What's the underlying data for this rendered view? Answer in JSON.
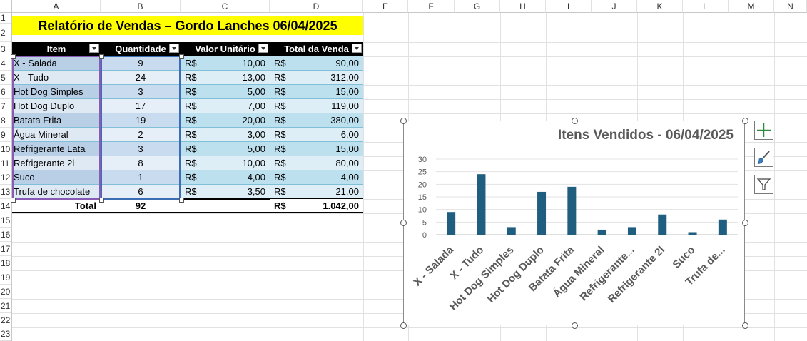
{
  "columns": [
    "A",
    "B",
    "C",
    "D",
    "E",
    "F",
    "G",
    "H",
    "I",
    "J",
    "K",
    "L",
    "M",
    "N"
  ],
  "rows": [
    "1",
    "2",
    "3",
    "4",
    "5",
    "6",
    "7",
    "8",
    "9",
    "10",
    "11",
    "12",
    "13",
    "14",
    "15",
    "16",
    "17",
    "18",
    "19",
    "20",
    "21",
    "22",
    "23"
  ],
  "report": {
    "title": "Relatório de Vendas – Gordo Lanches 06/04/2025",
    "headers": [
      "Item",
      "Quantidade",
      "Valor Unitário",
      "Total da Venda"
    ],
    "currency": "R$",
    "items": [
      {
        "item": "X - Salada",
        "qty": "9",
        "unit": "10,00",
        "total": "90,00"
      },
      {
        "item": "X - Tudo",
        "qty": "24",
        "unit": "13,00",
        "total": "312,00"
      },
      {
        "item": "Hot Dog Simples",
        "qty": "3",
        "unit": "5,00",
        "total": "15,00"
      },
      {
        "item": "Hot Dog Duplo",
        "qty": "17",
        "unit": "7,00",
        "total": "119,00"
      },
      {
        "item": "Batata Frita",
        "qty": "19",
        "unit": "20,00",
        "total": "380,00"
      },
      {
        "item": "Água Mineral",
        "qty": "2",
        "unit": "3,00",
        "total": "6,00"
      },
      {
        "item": "Refrigerante Lata",
        "qty": "3",
        "unit": "5,00",
        "total": "15,00"
      },
      {
        "item": "Refrigerante 2l",
        "qty": "8",
        "unit": "10,00",
        "total": "80,00"
      },
      {
        "item": "Suco",
        "qty": "1",
        "unit": "4,00",
        "total": "4,00"
      },
      {
        "item": "Trufa de chocolate",
        "qty": "6",
        "unit": "3,50",
        "total": "21,00"
      }
    ],
    "total_label": "Total",
    "total_qty": "92",
    "total_value": "1.042,00"
  },
  "colors": {
    "title_bg": "#ffff00",
    "header_bg": "#000000",
    "band_dark": "#bde0ef",
    "band_light": "#ddeef7",
    "bar": "#1f5e7e"
  },
  "chart_icons": [
    "add-chart-element-icon",
    "chart-styles-brush-icon",
    "chart-filter-icon"
  ],
  "chart_data": {
    "type": "bar",
    "title": "Itens Vendidos - 06/04/2025",
    "categories": [
      "X - Salada",
      "X - Tudo",
      "Hot Dog Simples",
      "Hot Dog Duplo",
      "Batata Frita",
      "Água Mineral",
      "Refrigerante...",
      "Refrigerante 2l",
      "Suco",
      "Trufa de..."
    ],
    "values": [
      9,
      24,
      3,
      17,
      19,
      2,
      3,
      8,
      1,
      6
    ],
    "yticks": [
      "0",
      "5",
      "10",
      "15",
      "20",
      "25",
      "30"
    ],
    "ylim": [
      0,
      30
    ],
    "grid": true,
    "legend": "none"
  }
}
